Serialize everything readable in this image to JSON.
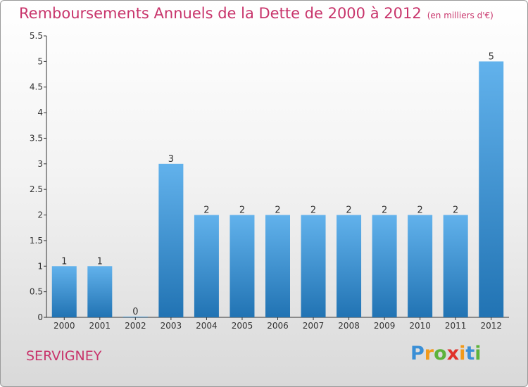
{
  "header": {
    "title": "Remboursements Annuels de la Dette de 2000 à 2012",
    "subtitle": "(en milliers d'€)"
  },
  "footer": {
    "city": "SERVIGNEY",
    "logo_letters": [
      "P",
      "r",
      "o",
      "x",
      "i",
      "t",
      "i"
    ],
    "logo_colors": [
      "#3a8fd6",
      "#f29a1b",
      "#5db33b",
      "#e0322b",
      "#f29a1b",
      "#3a8fd6",
      "#5db33b"
    ]
  },
  "colors": {
    "title": "#c8346b",
    "bar_top": "#62b2ec",
    "bar_bottom": "#2173b3",
    "axis": "#333333"
  },
  "chart_data": {
    "type": "bar",
    "title": "Remboursements Annuels de la Dette de 2000 à 2012",
    "subtitle": "(en milliers d'€)",
    "categories": [
      "2000",
      "2001",
      "2002",
      "2003",
      "2004",
      "2005",
      "2006",
      "2007",
      "2008",
      "2009",
      "2010",
      "2011",
      "2012"
    ],
    "values": [
      1,
      1,
      0,
      3,
      2,
      2,
      2,
      2,
      2,
      2,
      2,
      2,
      5
    ],
    "value_labels": [
      "1",
      "1",
      "0",
      "3",
      "2",
      "2",
      "2",
      "2",
      "2",
      "2",
      "2",
      "2",
      "5"
    ],
    "yticks": [
      "0",
      "0.5",
      "1",
      "1.5",
      "2",
      "2.5",
      "3",
      "3.5",
      "4",
      "4.5",
      "5",
      "5.5"
    ],
    "ylim": [
      0,
      5.5
    ],
    "xlabel": "",
    "ylabel": "",
    "grid": false
  }
}
